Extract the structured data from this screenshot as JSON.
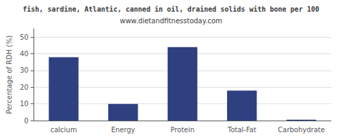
{
  "chart_data": {
    "type": "bar",
    "title": "fish, sardine, Atlantic, canned in oil, drained solids with bone per 100",
    "subtitle": "www.dietandfitnesstoday.com",
    "categories": [
      "calcium",
      "Energy",
      "Protein",
      "Total-Fat",
      "Carbohydrate"
    ],
    "values": [
      38,
      10,
      44,
      18,
      0.5
    ],
    "color": "#2e4080",
    "ylabel": "Percentage of RDH (%)",
    "ylim": [
      0,
      55
    ],
    "yticks": [
      0,
      10,
      20,
      30,
      40,
      50
    ],
    "grid": true
  }
}
